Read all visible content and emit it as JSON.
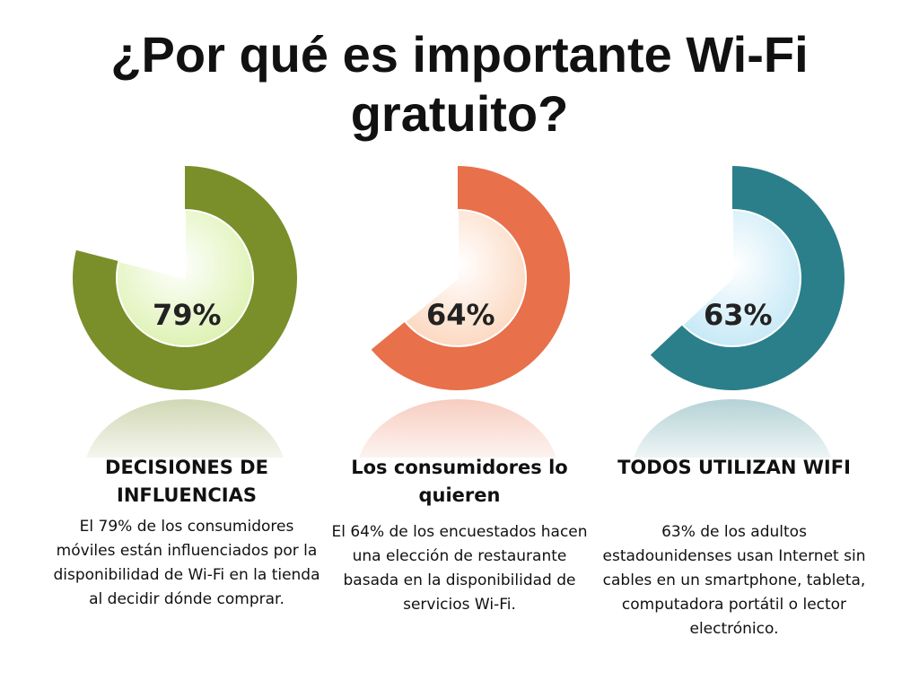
{
  "title": "¿Por qué es importante Wi-Fi gratuito?",
  "chart_data": [
    {
      "type": "pie",
      "value": 79,
      "value_label": "79%",
      "heading": "DECISIONES DE INFLUENCIAS",
      "description": "El 79% de los consumidores móviles están influenciados por la disponibilidad de Wi-Fi en la tienda al decidir dónde comprar.",
      "color": "#7a8e2a",
      "inner_color": "#d9f0a8"
    },
    {
      "type": "pie",
      "value": 64,
      "value_label": "64%",
      "heading": "Los consumidores lo quieren",
      "description": "El 64% de los encuestados hacen una elección de restaurante basada en la disponibilidad de servicios Wi-Fi.",
      "color": "#e8704a",
      "inner_color": "#fbd3b8"
    },
    {
      "type": "pie",
      "value": 63,
      "value_label": "63%",
      "heading": "TODOS UTILIZAN WIFI",
      "description": "63% de los adultos estadounidenses usan Internet sin cables en un smartphone, tableta, computadora portátil o lector electrónico.",
      "color": "#2a7f8a",
      "inner_color": "#bfe6f5"
    }
  ]
}
